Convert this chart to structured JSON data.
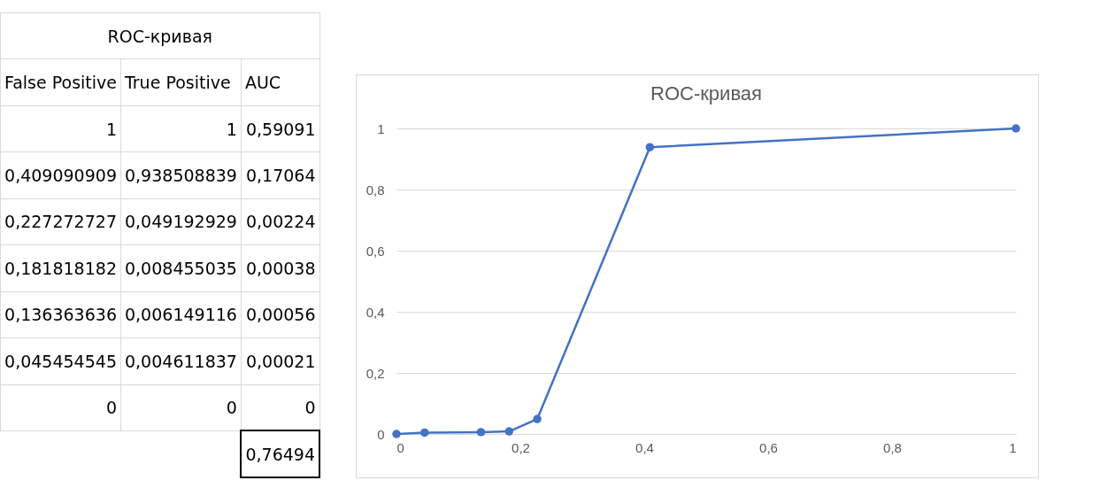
{
  "chart_data": {
    "type": "line",
    "title": "ROC-кривая",
    "x": [
      1,
      0.409090909,
      0.227272727,
      0.181818182,
      0.136363636,
      0.045454545,
      0
    ],
    "series": [
      {
        "color": "#4472c4",
        "values": [
          1,
          0.938508839,
          0.049192929,
          0.008455035,
          0.006149116,
          0.004611837,
          0
        ]
      }
    ],
    "xlim": [
      0,
      1
    ],
    "ylim": [
      0,
      1
    ],
    "xticks": [
      0,
      {
        "value": 0.2,
        "label": "0,2"
      },
      {
        "value": 0.4,
        "label": "0,4"
      },
      {
        "value": 0.6,
        "label": "0,6"
      },
      {
        "value": 0.8,
        "label": "0,8"
      },
      1
    ],
    "yticks": [
      0,
      {
        "value": 0.2,
        "label": "0,2"
      },
      {
        "value": 0.4,
        "label": "0,4"
      },
      {
        "value": 0.6,
        "label": "0,6"
      },
      {
        "value": 0.8,
        "label": "0,8"
      },
      1
    ],
    "grid": "y",
    "marker": "circle",
    "line_style": "solid",
    "legend": false,
    "annotations": [
      "ROC-кривая",
      "False Positive",
      "True Positive",
      "AUC",
      "1",
      "1",
      "0,59091",
      "0,409090909",
      "0,938508839",
      "0,17064",
      "0,227272727",
      "0,049192929",
      "0,00224",
      "0,181818182",
      "0,008455035",
      "0,00038",
      "0,136363636",
      "0,006149116",
      "0,00056",
      "0,045454545",
      "0,004611837",
      "0,00021",
      "0",
      "0",
      "0",
      "0,76494"
    ]
  }
}
